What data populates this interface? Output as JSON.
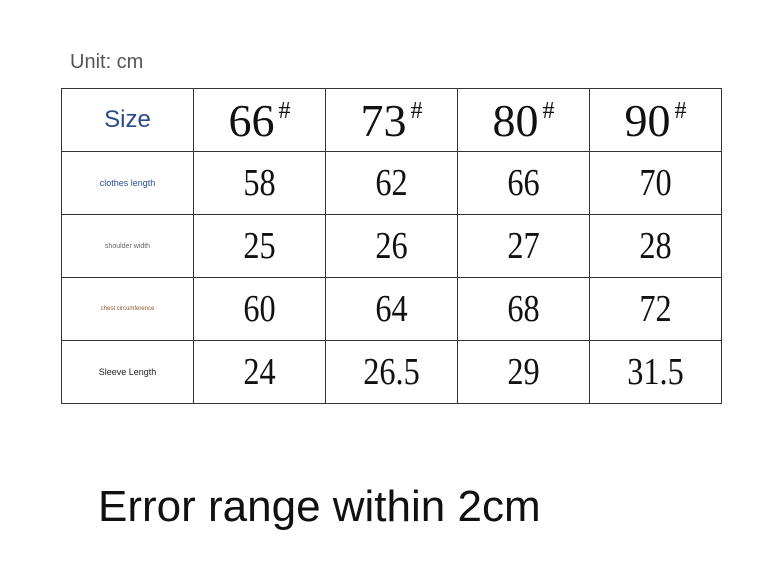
{
  "unit": "Unit: cm",
  "table": {
    "corner": "Size",
    "columns": [
      {
        "label": "66",
        "mark": "#"
      },
      {
        "label": "73",
        "mark": "#"
      },
      {
        "label": "80",
        "mark": "#"
      },
      {
        "label": "90",
        "mark": "#"
      }
    ],
    "rows": [
      {
        "label": "clothes length",
        "values": [
          58,
          62,
          66,
          70
        ]
      },
      {
        "label": "shoulder width",
        "values": [
          25,
          26,
          27,
          28
        ]
      },
      {
        "label": "chest circumference",
        "values": [
          60,
          64,
          68,
          72
        ]
      },
      {
        "label": "Sleeve Length",
        "values": [
          24,
          26.5,
          29,
          31.5
        ]
      }
    ]
  },
  "footer": "Error range within 2cm"
}
